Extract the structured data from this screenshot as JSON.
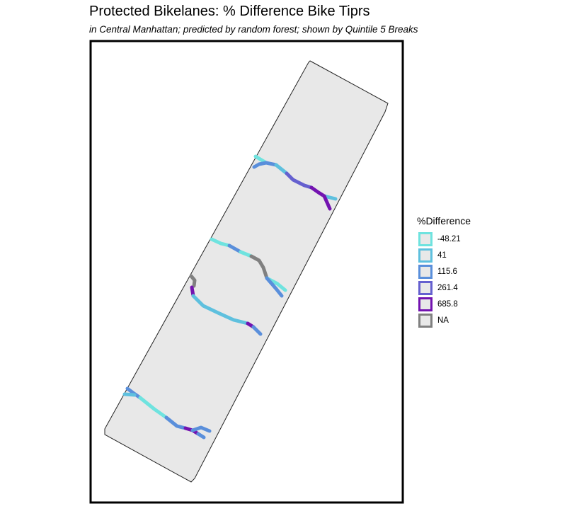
{
  "title": "Protected Bikelanes: % Difference Bike Tiprs",
  "subtitle": "in Central Manhattan; predicted by random forest; shown by Quintile 5 Breaks",
  "legend": {
    "title": "%Difference",
    "items": [
      {
        "label": "-48.21",
        "color": "#6fe3df"
      },
      {
        "label": "41",
        "color": "#5ec0de"
      },
      {
        "label": "115.6",
        "color": "#5a8fdb"
      },
      {
        "label": "261.4",
        "color": "#6560cf"
      },
      {
        "label": "685.8",
        "color": "#7313b0"
      },
      {
        "label": "NA",
        "color": "#808080"
      }
    ]
  },
  "colors": {
    "area_fill": "#e8e8e8",
    "area_outline": "#222222",
    "frame": "#000000"
  }
}
